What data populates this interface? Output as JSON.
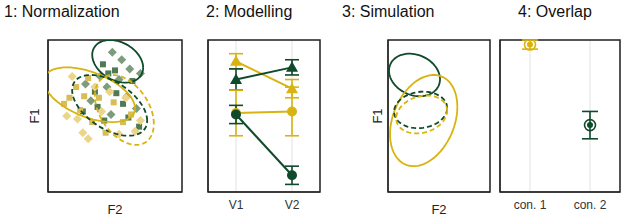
{
  "chart_data": [
    {
      "type": "scatter",
      "title": "1: Normalization",
      "xlabel": "F2",
      "ylabel": "F1",
      "xlim": [
        0,
        10
      ],
      "ylim": [
        0,
        10
      ],
      "xticks": [
        0,
        1,
        2,
        3,
        4,
        5,
        6,
        7,
        8,
        9,
        10
      ],
      "yticks": [
        0,
        1,
        2,
        3,
        4,
        5,
        6,
        7,
        8,
        9,
        10
      ],
      "grid": true,
      "tick_labels": false,
      "series": [
        {
          "color": "#7d9c7e",
          "marker": "diamond",
          "x": [
            4.8,
            5.5,
            6.1,
            3.9,
            4.4,
            5.9,
            3.2,
            6.6,
            4.7,
            5.3,
            2.8,
            6.9
          ],
          "y": [
            9.2,
            8.7,
            8.1,
            7.6,
            6.9,
            6.3,
            6.0,
            5.5,
            5.1,
            7.4,
            7.1,
            7.8
          ]
        },
        {
          "color": "#4f7a55",
          "marker": "square",
          "x": [
            5.0,
            6.3,
            4.1,
            3.5,
            5.6,
            4.2,
            6.8,
            2.6,
            5.1,
            3.7,
            6.0,
            4.5
          ],
          "y": [
            8.0,
            7.3,
            8.4,
            6.6,
            5.8,
            4.7,
            4.3,
            5.3,
            6.5,
            5.6,
            4.9,
            7.8
          ]
        },
        {
          "color": "#d8bc55",
          "marker": "square",
          "x": [
            2.1,
            1.6,
            3.0,
            2.4,
            3.8,
            4.9,
            1.2,
            3.3,
            5.6,
            4.3,
            2.7,
            6.2
          ],
          "y": [
            6.9,
            6.2,
            7.5,
            5.4,
            6.2,
            5.9,
            5.8,
            4.6,
            4.6,
            3.9,
            6.3,
            5.1
          ]
        },
        {
          "color": "#ebd58a",
          "marker": "diamond",
          "x": [
            1.8,
            3.5,
            2.2,
            4.6,
            5.3,
            3.0,
            6.5,
            1.4,
            4.0,
            5.8,
            2.6,
            6.9
          ],
          "y": [
            7.6,
            6.9,
            4.8,
            6.6,
            3.8,
            3.5,
            4.0,
            5.0,
            5.3,
            6.2,
            3.9,
            4.7
          ]
        }
      ],
      "ellipses": [
        {
          "color": "#0f4a2b",
          "line_style": "solid",
          "center": [
            5.2,
            8.6
          ],
          "sd": [
            1.9,
            1.4
          ],
          "cor": -0.3
        },
        {
          "color": "#d9b310",
          "line_style": "solid",
          "center": [
            3.1,
            6.4
          ],
          "sd": [
            3.4,
            1.8
          ],
          "cor": -0.5
        },
        {
          "color": "#0f4a2b",
          "line_style": "dashed",
          "center": [
            4.6,
            5.7
          ],
          "sd": [
            2.8,
            2.0
          ],
          "cor": -0.5
        },
        {
          "color": "#d9b310",
          "line_style": "dashed",
          "center": [
            5.7,
            5.4
          ],
          "sd": [
            2.2,
            2.3
          ],
          "cor": -0.4
        }
      ]
    },
    {
      "type": "line",
      "title": "2: Modelling",
      "categories": [
        "V1",
        "V2"
      ],
      "ylim": [
        0,
        10
      ],
      "yticks": [
        0,
        1,
        2,
        3,
        4,
        5,
        6,
        7,
        8,
        9,
        10
      ],
      "grid": true,
      "tick_labels": "x",
      "series": [
        {
          "color": "#d9b310",
          "marker": "triangle",
          "values": [
            8.6,
            6.8
          ],
          "error": [
            0.5,
            0.6
          ]
        },
        {
          "color": "#0f4a2b",
          "marker": "triangle",
          "values": [
            7.4,
            8.2
          ],
          "error": [
            0.7,
            0.5
          ]
        },
        {
          "color": "#d9b310",
          "marker": "circle",
          "values": [
            5.2,
            5.3
          ],
          "error": [
            1.5,
            1.6
          ]
        },
        {
          "color": "#0f4a2b",
          "marker": "circle",
          "values": [
            5.1,
            1.1
          ],
          "error": [
            0.6,
            0.6
          ]
        }
      ]
    },
    {
      "type": "ellipse",
      "title": "3: Simulation",
      "xlabel": "F2",
      "ylabel": "F1",
      "xlim": [
        0,
        10
      ],
      "ylim": [
        0,
        10
      ],
      "xticks": [
        0,
        1,
        2,
        3,
        4,
        5,
        6,
        7,
        8,
        9,
        10
      ],
      "yticks": [
        0,
        1,
        2,
        3,
        4,
        5,
        6,
        7,
        8,
        9,
        10
      ],
      "grid": true,
      "tick_labels": false,
      "ellipses": [
        {
          "color": "#0f4a2b",
          "line_style": "solid",
          "center": [
            2.6,
            7.7
          ],
          "sd": [
            2.5,
            1.4
          ],
          "cor": -0.2
        },
        {
          "color": "#d9b310",
          "line_style": "solid",
          "center": [
            3.5,
            4.7
          ],
          "sd": [
            3.3,
            3.0
          ],
          "cor": 0.3
        },
        {
          "color": "#0f4a2b",
          "line_style": "dashed",
          "center": [
            3.2,
            5.4
          ],
          "sd": [
            2.6,
            1.2
          ],
          "cor": 0.1
        },
        {
          "color": "#d9b310",
          "line_style": "dashed",
          "center": [
            3.3,
            5.1
          ],
          "sd": [
            2.5,
            1.25
          ],
          "cor": 0.2
        }
      ]
    },
    {
      "type": "scatter",
      "title": "4: Overlap",
      "categories": [
        "con. 1",
        "con. 2"
      ],
      "values": [
        9.7,
        4.4
      ],
      "error": [
        0.3,
        0.9
      ],
      "colors": [
        "#d9b310",
        "#0f4a2b"
      ],
      "marker": "bullseye",
      "ylim": [
        0,
        10
      ],
      "yticks": [
        0,
        1,
        2,
        3,
        4,
        5,
        6,
        7,
        8,
        9,
        10
      ],
      "grid": true,
      "tick_labels": "x"
    }
  ]
}
